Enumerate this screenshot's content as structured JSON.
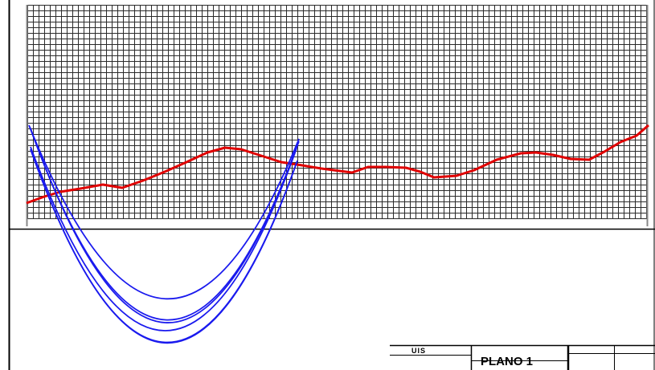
{
  "drawing": {
    "colors": {
      "grid": "#2a2a2a",
      "profile": "#e00000",
      "curves": "#1a1aee",
      "frame": "#000000",
      "background": "#ffffff"
    },
    "grid_visible": true
  },
  "title_block": {
    "org_label": "UIS",
    "sheet_label": "PLANO 1"
  }
}
